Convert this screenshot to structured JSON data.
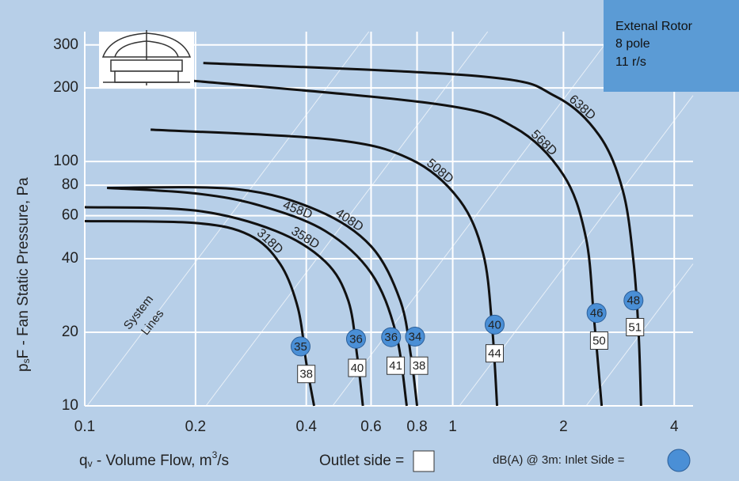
{
  "chart_data": {
    "type": "line",
    "log_x": true,
    "log_y": true,
    "grid": true,
    "info_box": [
      "Extenal Rotor",
      "8 pole",
      "11 r/s"
    ],
    "x_label": [
      "q",
      "v",
      " - Volume Flow, m",
      "3",
      "/s"
    ],
    "y_label": [
      "p",
      "s",
      "F - Fan Static Pressure, Pa"
    ],
    "outlet_legend": "Outlet side =",
    "inlet_legend": "dB(A) @ 3m:  Inlet Side =",
    "system_lines_label": [
      "System",
      "Lines"
    ],
    "xlim": [
      0.1,
      4.5
    ],
    "ylim": [
      10,
      340
    ],
    "xticks": [
      0.1,
      0.2,
      0.4,
      0.6,
      0.8,
      1,
      2,
      4
    ],
    "yticks": [
      10,
      20,
      40,
      60,
      80,
      100,
      200,
      300
    ],
    "line_color": "#111111",
    "series": [
      {
        "name": "318D",
        "x": [
          0.1,
          0.2,
          0.28,
          0.34,
          0.38,
          0.4,
          0.42
        ],
        "values": [
          57,
          56,
          50,
          38,
          25,
          15,
          10
        ]
      },
      {
        "name": "358D",
        "x": [
          0.1,
          0.2,
          0.33,
          0.45,
          0.52,
          0.55,
          0.57
        ],
        "values": [
          65,
          63,
          52,
          39,
          27,
          16,
          10
        ]
      },
      {
        "name": "458D",
        "x": [
          0.115,
          0.2,
          0.3,
          0.45,
          0.6,
          0.7,
          0.75
        ],
        "values": [
          78,
          74,
          66,
          52,
          35,
          20,
          10
        ]
      },
      {
        "name": "408D",
        "x": [
          0.115,
          0.26,
          0.43,
          0.6,
          0.72,
          0.77,
          0.8
        ],
        "values": [
          78,
          77,
          63,
          45,
          27,
          16,
          10
        ]
      },
      {
        "name": "508D",
        "x": [
          0.151,
          0.47,
          0.77,
          1.04,
          1.21,
          1.28,
          1.32
        ],
        "values": [
          135,
          123,
          102,
          70,
          42,
          21,
          10
        ]
      },
      {
        "name": "568D",
        "x": [
          0.19,
          0.9,
          1.47,
          2.0,
          2.3,
          2.42,
          2.54
        ],
        "values": [
          215,
          172,
          138,
          88,
          49,
          23,
          10
        ]
      },
      {
        "name": "638D",
        "x": [
          0.21,
          1.2,
          1.9,
          2.5,
          2.9,
          3.1,
          3.2,
          3.25
        ],
        "values": [
          253,
          223,
          185,
          128,
          76,
          39,
          20,
          10
        ]
      }
    ],
    "inlet_db": {
      "color": "#4a8fd6",
      "x": [
        0.386,
        0.546,
        0.68,
        0.79,
        1.3,
        2.46,
        3.1
      ],
      "y": [
        17.5,
        18.8,
        19.1,
        19.2,
        21.5,
        24,
        27
      ],
      "values": [
        35,
        36,
        36,
        34,
        40,
        46,
        48
      ]
    },
    "outlet_db": {
      "x": [
        0.4,
        0.55,
        0.7,
        0.81,
        1.3,
        2.5,
        3.13
      ],
      "y": [
        13.5,
        14.3,
        14.6,
        14.6,
        16.4,
        18.5,
        21
      ],
      "values": [
        38,
        40,
        41,
        38,
        44,
        50,
        51
      ]
    }
  }
}
